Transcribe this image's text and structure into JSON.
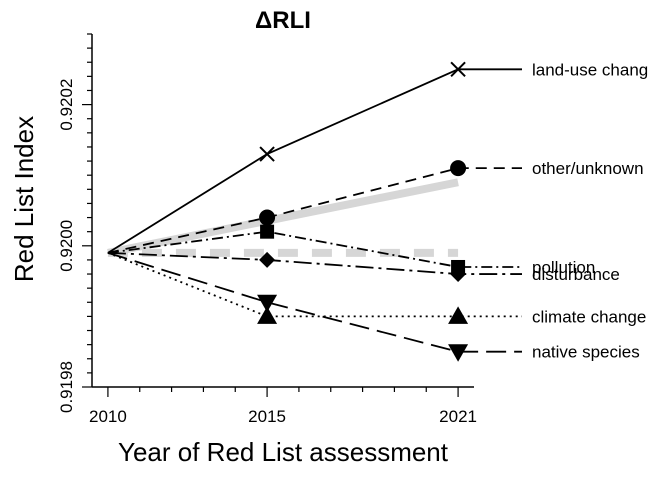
{
  "chart_data": {
    "type": "line",
    "title": "ΔRLI",
    "xlabel": "Year of Red List assessment",
    "ylabel": "Red List Index",
    "x": [
      2010,
      2015,
      2021
    ],
    "xlim": [
      2009.5,
      2021.5
    ],
    "ylim": [
      0.9198,
      0.9203
    ],
    "x_ticks": [
      2010,
      2015,
      2021
    ],
    "y_ticks": [
      0.9198,
      0.92,
      0.9202
    ],
    "y_tick_labels": [
      "0.9198",
      "0.9200",
      "0.9202"
    ],
    "grid": false,
    "references": [
      {
        "style": "solid-grey-thick",
        "points": [
          [
            2010,
            0.91999
          ],
          [
            2021,
            0.92009
          ]
        ]
      },
      {
        "style": "dashed-grey-thick",
        "points": [
          [
            2010,
            0.91999
          ],
          [
            2021,
            0.91999
          ]
        ]
      }
    ],
    "series": [
      {
        "name": "land-use chang",
        "marker": "x",
        "dash": "solid",
        "values": [
          0.91999,
          0.92013,
          0.92025
        ]
      },
      {
        "name": "other/unknown",
        "marker": "circle",
        "dash": "dashed",
        "values": [
          0.91999,
          0.92004,
          0.92011
        ]
      },
      {
        "name": "pollution",
        "marker": "square",
        "dash": "dashdot",
        "values": [
          0.91999,
          0.92002,
          0.91997
        ]
      },
      {
        "name": "disturbance",
        "marker": "diamond",
        "dash": "longdashdot",
        "values": [
          0.91999,
          0.91998,
          0.91996
        ]
      },
      {
        "name": "climate change",
        "marker": "triangle-up",
        "dash": "dotted",
        "values": [
          0.91999,
          0.9199,
          0.9199
        ]
      },
      {
        "name": "native species",
        "marker": "triangle-down",
        "dash": "longdash",
        "values": [
          0.91999,
          0.91992,
          0.91985
        ]
      }
    ]
  }
}
